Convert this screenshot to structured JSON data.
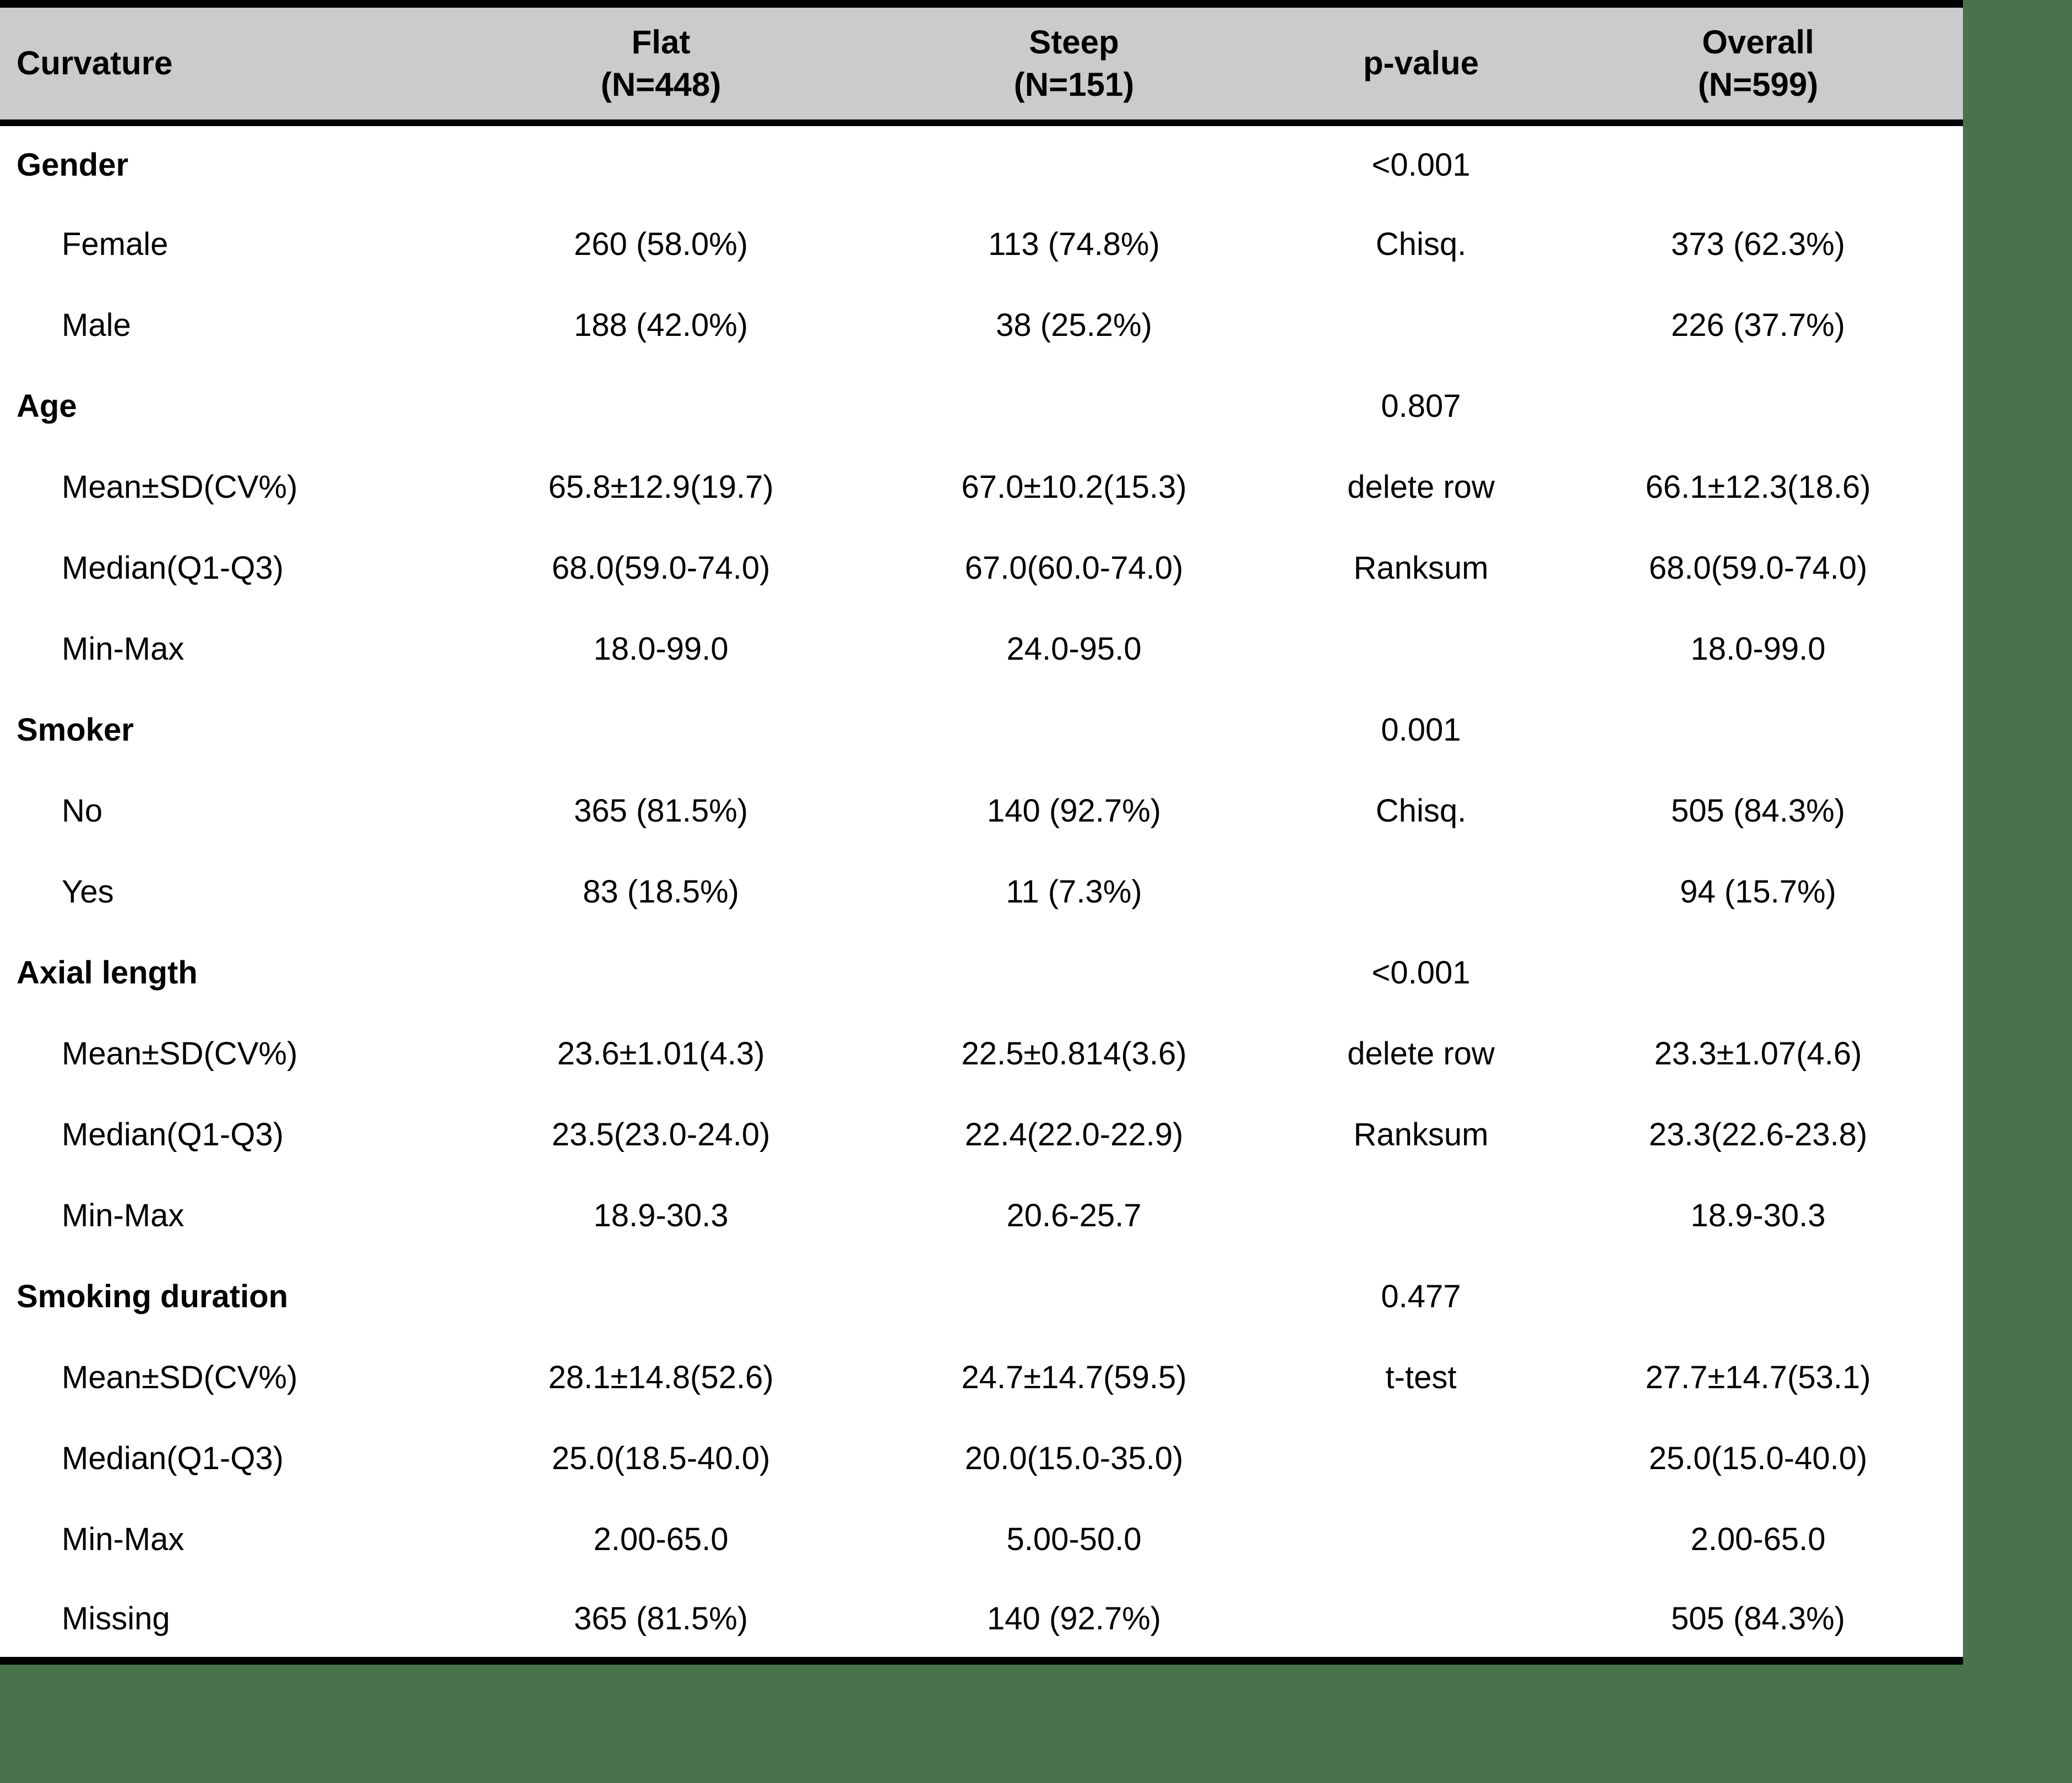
{
  "colors": {
    "page_background": "#48734b",
    "table_background": "#ffffff",
    "header_background": "#cbcbcb",
    "border_color": "#000000",
    "text_color": "#000000"
  },
  "table": {
    "header": {
      "curvature": "Curvature",
      "flat_line1": "Flat",
      "flat_line2": "(N=448)",
      "steep_line1": "Steep",
      "steep_line2": "(N=151)",
      "pvalue": "p-value",
      "overall_line1": "Overall",
      "overall_line2": "(N=599)"
    },
    "rows": [
      {
        "indent": "group",
        "label": "Gender",
        "flat": "",
        "steep": "",
        "p": "<0.001",
        "overall": ""
      },
      {
        "indent": "sub",
        "label": "Female",
        "flat": "260 (58.0%)",
        "steep": "113 (74.8%)",
        "p": "Chisq.",
        "overall": "373 (62.3%)"
      },
      {
        "indent": "sub",
        "label": "Male",
        "flat": "188 (42.0%)",
        "steep": "38 (25.2%)",
        "p": "",
        "overall": "226 (37.7%)"
      },
      {
        "indent": "group",
        "label": "Age",
        "flat": "",
        "steep": "",
        "p": "0.807",
        "overall": ""
      },
      {
        "indent": "sub",
        "label": "Mean±SD(CV%)",
        "flat": "65.8±12.9(19.7)",
        "steep": "67.0±10.2(15.3)",
        "p": "delete row",
        "overall": "66.1±12.3(18.6)"
      },
      {
        "indent": "sub",
        "label": "Median(Q1-Q3)",
        "flat": "68.0(59.0-74.0)",
        "steep": "67.0(60.0-74.0)",
        "p": "Ranksum",
        "overall": "68.0(59.0-74.0)"
      },
      {
        "indent": "sub",
        "label": "Min-Max",
        "flat": "18.0-99.0",
        "steep": "24.0-95.0",
        "p": "",
        "overall": "18.0-99.0"
      },
      {
        "indent": "group",
        "label": "Smoker",
        "flat": "",
        "steep": "",
        "p": "0.001",
        "overall": ""
      },
      {
        "indent": "sub",
        "label": "No",
        "flat": "365 (81.5%)",
        "steep": "140 (92.7%)",
        "p": "Chisq.",
        "overall": "505 (84.3%)"
      },
      {
        "indent": "sub",
        "label": "Yes",
        "flat": "83 (18.5%)",
        "steep": "11 (7.3%)",
        "p": "",
        "overall": "94 (15.7%)"
      },
      {
        "indent": "group",
        "label": "Axial length",
        "flat": "",
        "steep": "",
        "p": "<0.001",
        "overall": ""
      },
      {
        "indent": "sub",
        "label": "Mean±SD(CV%)",
        "flat": "23.6±1.01(4.3)",
        "steep": "22.5±0.814(3.6)",
        "p": "delete row",
        "overall": "23.3±1.07(4.6)"
      },
      {
        "indent": "sub",
        "label": "Median(Q1-Q3)",
        "flat": "23.5(23.0-24.0)",
        "steep": "22.4(22.0-22.9)",
        "p": "Ranksum",
        "overall": "23.3(22.6-23.8)"
      },
      {
        "indent": "sub",
        "label": "Min-Max",
        "flat": "18.9-30.3",
        "steep": "20.6-25.7",
        "p": "",
        "overall": "18.9-30.3"
      },
      {
        "indent": "group",
        "label": "Smoking duration",
        "flat": "",
        "steep": "",
        "p": "0.477",
        "overall": ""
      },
      {
        "indent": "sub",
        "label": "Mean±SD(CV%)",
        "flat": "28.1±14.8(52.6)",
        "steep": "24.7±14.7(59.5)",
        "p": "t-test",
        "overall": "27.7±14.7(53.1)"
      },
      {
        "indent": "sub",
        "label": "Median(Q1-Q3)",
        "flat": "25.0(18.5-40.0)",
        "steep": "20.0(15.0-35.0)",
        "p": "",
        "overall": "25.0(15.0-40.0)"
      },
      {
        "indent": "sub",
        "label": "Min-Max",
        "flat": "2.00-65.0",
        "steep": "5.00-50.0",
        "p": "",
        "overall": "2.00-65.0"
      },
      {
        "indent": "sub",
        "label": "Missing",
        "flat": "365 (81.5%)",
        "steep": "140 (92.7%)",
        "p": "",
        "overall": "505 (84.3%)"
      }
    ]
  }
}
